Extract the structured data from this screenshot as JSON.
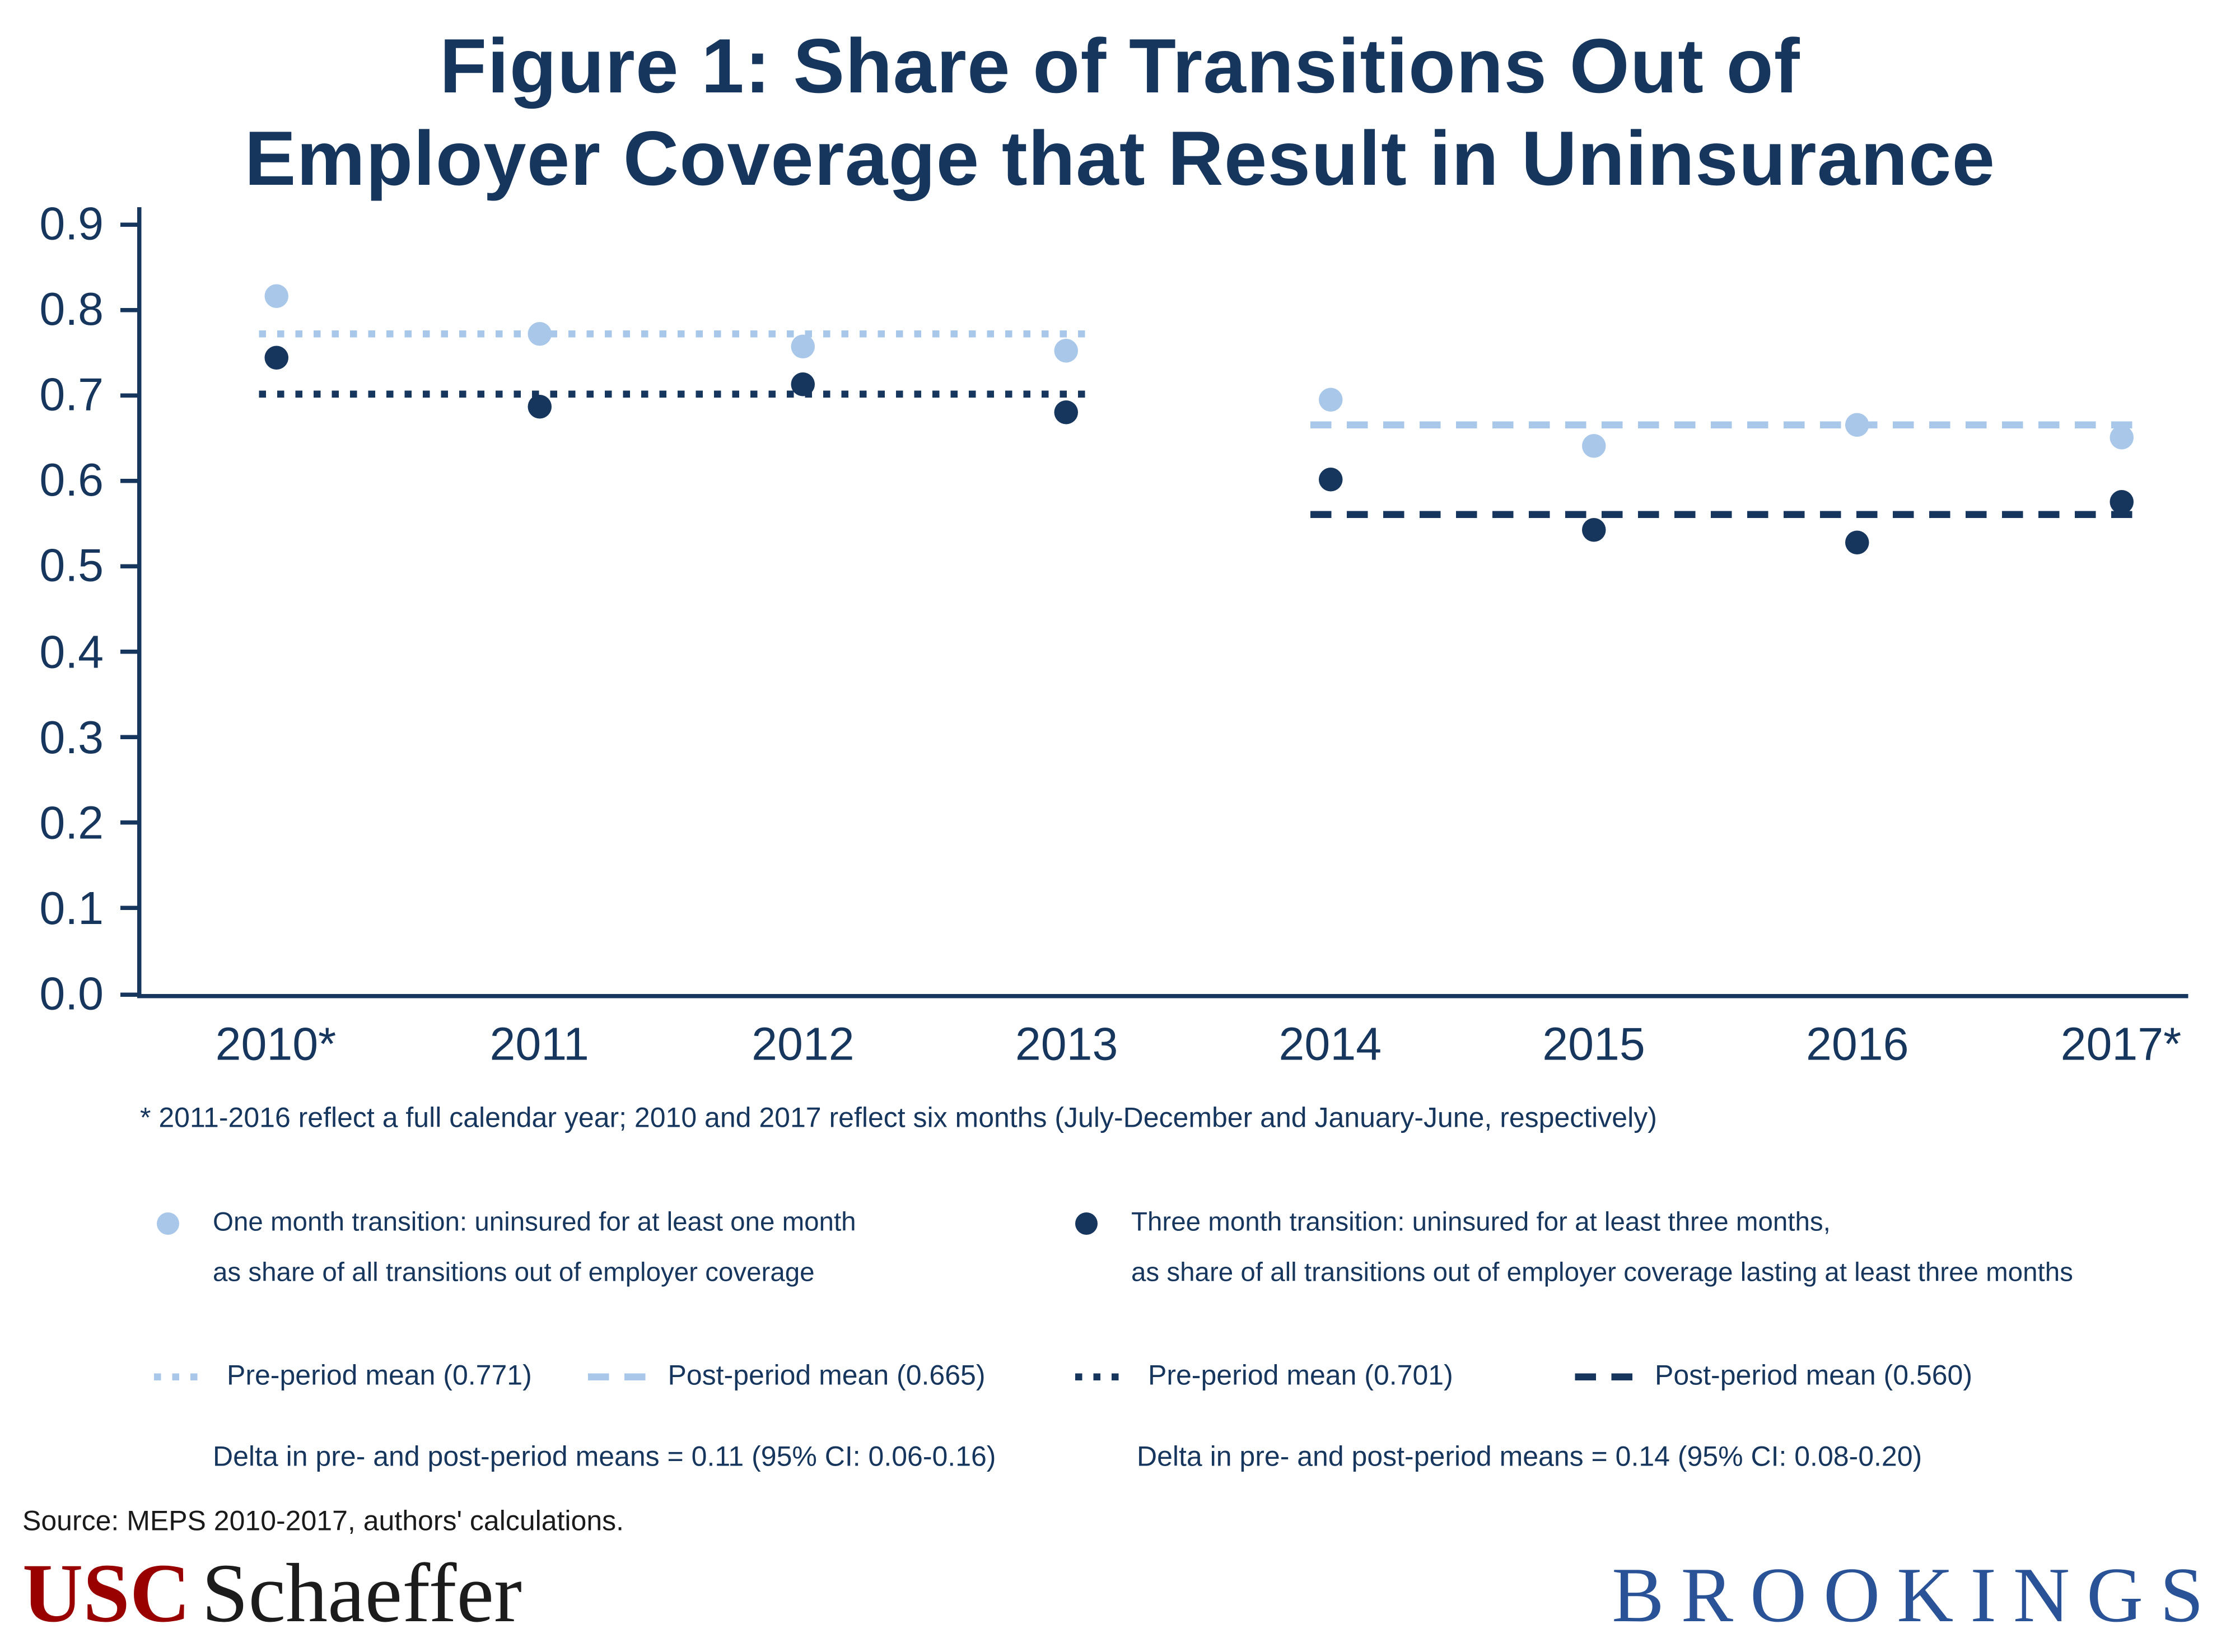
{
  "title": {
    "line1": "Figure 1: Share of Transitions Out of",
    "line2": "Employer Coverage that Result in Uninsurance"
  },
  "footnote": "* 2011-2016 reflect a full calendar year; 2010 and 2017 reflect six months (July-December and January-June, respectively)",
  "source": "Source: MEPS 2010-2017, authors' calculations.",
  "logos": {
    "usc": "USC",
    "schaeffer": "Schaeffer",
    "brookings": "BROOKINGS"
  },
  "colors": {
    "light_blue": "#a9c7e9",
    "dark_blue": "#17365d",
    "usc_red": "#990000",
    "brookings_blue": "#2a5397"
  },
  "chart_data": {
    "type": "scatter",
    "title": "Figure 1: Share of Transitions Out of Employer Coverage that Result in Uninsurance",
    "categories": [
      "2010*",
      "2011",
      "2012",
      "2013",
      "2014",
      "2015",
      "2016",
      "2017*"
    ],
    "series": [
      {
        "name": "One month transition: uninsured for at least one month as share of all transitions out of employer coverage",
        "color_key": "light_blue",
        "values": [
          0.815,
          0.772,
          0.757,
          0.752,
          0.695,
          0.64,
          0.666,
          0.651
        ]
      },
      {
        "name": "Three month transition: uninsured for at least three months, as share of all transitions out of employer coverage lasting at least three months",
        "color_key": "dark_blue",
        "values": [
          0.743,
          0.686,
          0.712,
          0.68,
          0.601,
          0.543,
          0.527,
          0.576
        ]
      }
    ],
    "mean_lines": [
      {
        "label": "Pre-period mean (0.771)",
        "value": 0.771,
        "span": "pre",
        "style": "dotted",
        "color_key": "light_blue"
      },
      {
        "label": "Post-period mean (0.665)",
        "value": 0.665,
        "span": "post",
        "style": "dashed",
        "color_key": "light_blue"
      },
      {
        "label": "Pre-period mean (0.701)",
        "value": 0.701,
        "span": "pre",
        "style": "dotted",
        "color_key": "dark_blue"
      },
      {
        "label": "Post-period mean (0.560)",
        "value": 0.56,
        "span": "post",
        "style": "dashed",
        "color_key": "dark_blue"
      }
    ],
    "ylim": [
      0,
      0.9
    ],
    "ytick_step": 0.1,
    "yticks": [
      "0.0",
      "0.1",
      "0.2",
      "0.3",
      "0.4",
      "0.5",
      "0.6",
      "0.7",
      "0.8",
      "0.9"
    ],
    "grid": false,
    "legend_position": "bottom"
  },
  "legend": {
    "series": [
      {
        "line1": "One month transition: uninsured for at least one month",
        "line2": "as share of all transitions out of employer coverage"
      },
      {
        "line1": "Three month transition: uninsured for at least three months,",
        "line2": "as share of all transitions out of employer coverage lasting at least three months"
      }
    ],
    "means": [
      "Pre-period mean (0.771)",
      "Post-period mean (0.665)",
      "Pre-period mean (0.701)",
      "Post-period mean (0.560)"
    ],
    "deltas": [
      "Delta in pre- and post-period means = 0.11 (95% CI: 0.06-0.16)",
      "Delta in pre- and post-period means = 0.14 (95% CI: 0.08-0.20)"
    ]
  }
}
